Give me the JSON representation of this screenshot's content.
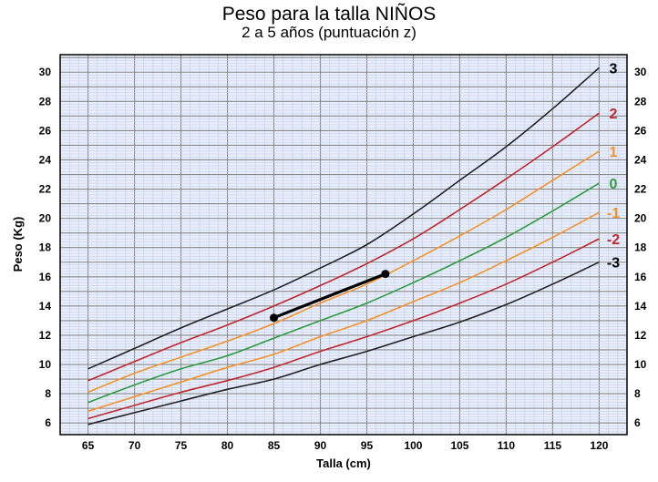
{
  "chart_data": {
    "type": "line",
    "title": "Peso para la talla NIÑOS",
    "subtitle": "2 a 5 años (puntuación z)",
    "xlabel": "Talla (cm)",
    "ylabel": "Peso (Kg)",
    "xlim": [
      62,
      123
    ],
    "ylim": [
      5.2,
      31.2
    ],
    "x_ticks": [
      65,
      70,
      75,
      80,
      85,
      90,
      95,
      100,
      105,
      110,
      115,
      120
    ],
    "y_ticks": [
      6,
      8,
      10,
      12,
      14,
      16,
      18,
      20,
      22,
      24,
      26,
      28,
      30
    ],
    "grid": true,
    "x": [
      65,
      70,
      75,
      80,
      85,
      90,
      95,
      100,
      105,
      110,
      115,
      120
    ],
    "series": [
      {
        "name": "3",
        "color": "#222222",
        "label_color": "#000000",
        "values": [
          9.7,
          11.1,
          12.5,
          13.8,
          15.1,
          16.6,
          18.2,
          20.3,
          22.6,
          24.9,
          27.5,
          30.3
        ]
      },
      {
        "name": "2",
        "color": "#c0282d",
        "label_color": "#c0282d",
        "values": [
          8.9,
          10.2,
          11.5,
          12.7,
          14.0,
          15.4,
          16.9,
          18.6,
          20.6,
          22.7,
          24.9,
          27.2
        ]
      },
      {
        "name": "1",
        "color": "#f4922a",
        "label_color": "#f4922a",
        "values": [
          8.1,
          9.4,
          10.5,
          11.6,
          12.8,
          14.2,
          15.5,
          17.1,
          18.8,
          20.6,
          22.6,
          24.6
        ]
      },
      {
        "name": "0",
        "color": "#2e9b3f",
        "label_color": "#2e9b3f",
        "values": [
          7.4,
          8.6,
          9.7,
          10.6,
          11.8,
          13.0,
          14.2,
          15.6,
          17.1,
          18.7,
          20.5,
          22.4
        ]
      },
      {
        "name": "-1",
        "color": "#f4922a",
        "label_color": "#f4922a",
        "values": [
          6.8,
          7.8,
          8.8,
          9.8,
          10.7,
          11.9,
          13.0,
          14.3,
          15.6,
          17.1,
          18.7,
          20.4
        ]
      },
      {
        "name": "-2",
        "color": "#c0282d",
        "label_color": "#c0282d",
        "values": [
          6.3,
          7.2,
          8.1,
          8.9,
          9.8,
          10.9,
          11.9,
          13.0,
          14.2,
          15.5,
          17.0,
          18.6
        ]
      },
      {
        "name": "-3",
        "color": "#222222",
        "label_color": "#000000",
        "values": [
          5.9,
          6.7,
          7.5,
          8.3,
          9.0,
          10.0,
          10.9,
          11.9,
          12.9,
          14.1,
          15.5,
          17.0
        ]
      }
    ],
    "patient": {
      "points": [
        [
          85,
          13.2
        ],
        [
          97,
          16.2
        ]
      ],
      "color": "#000000"
    }
  }
}
